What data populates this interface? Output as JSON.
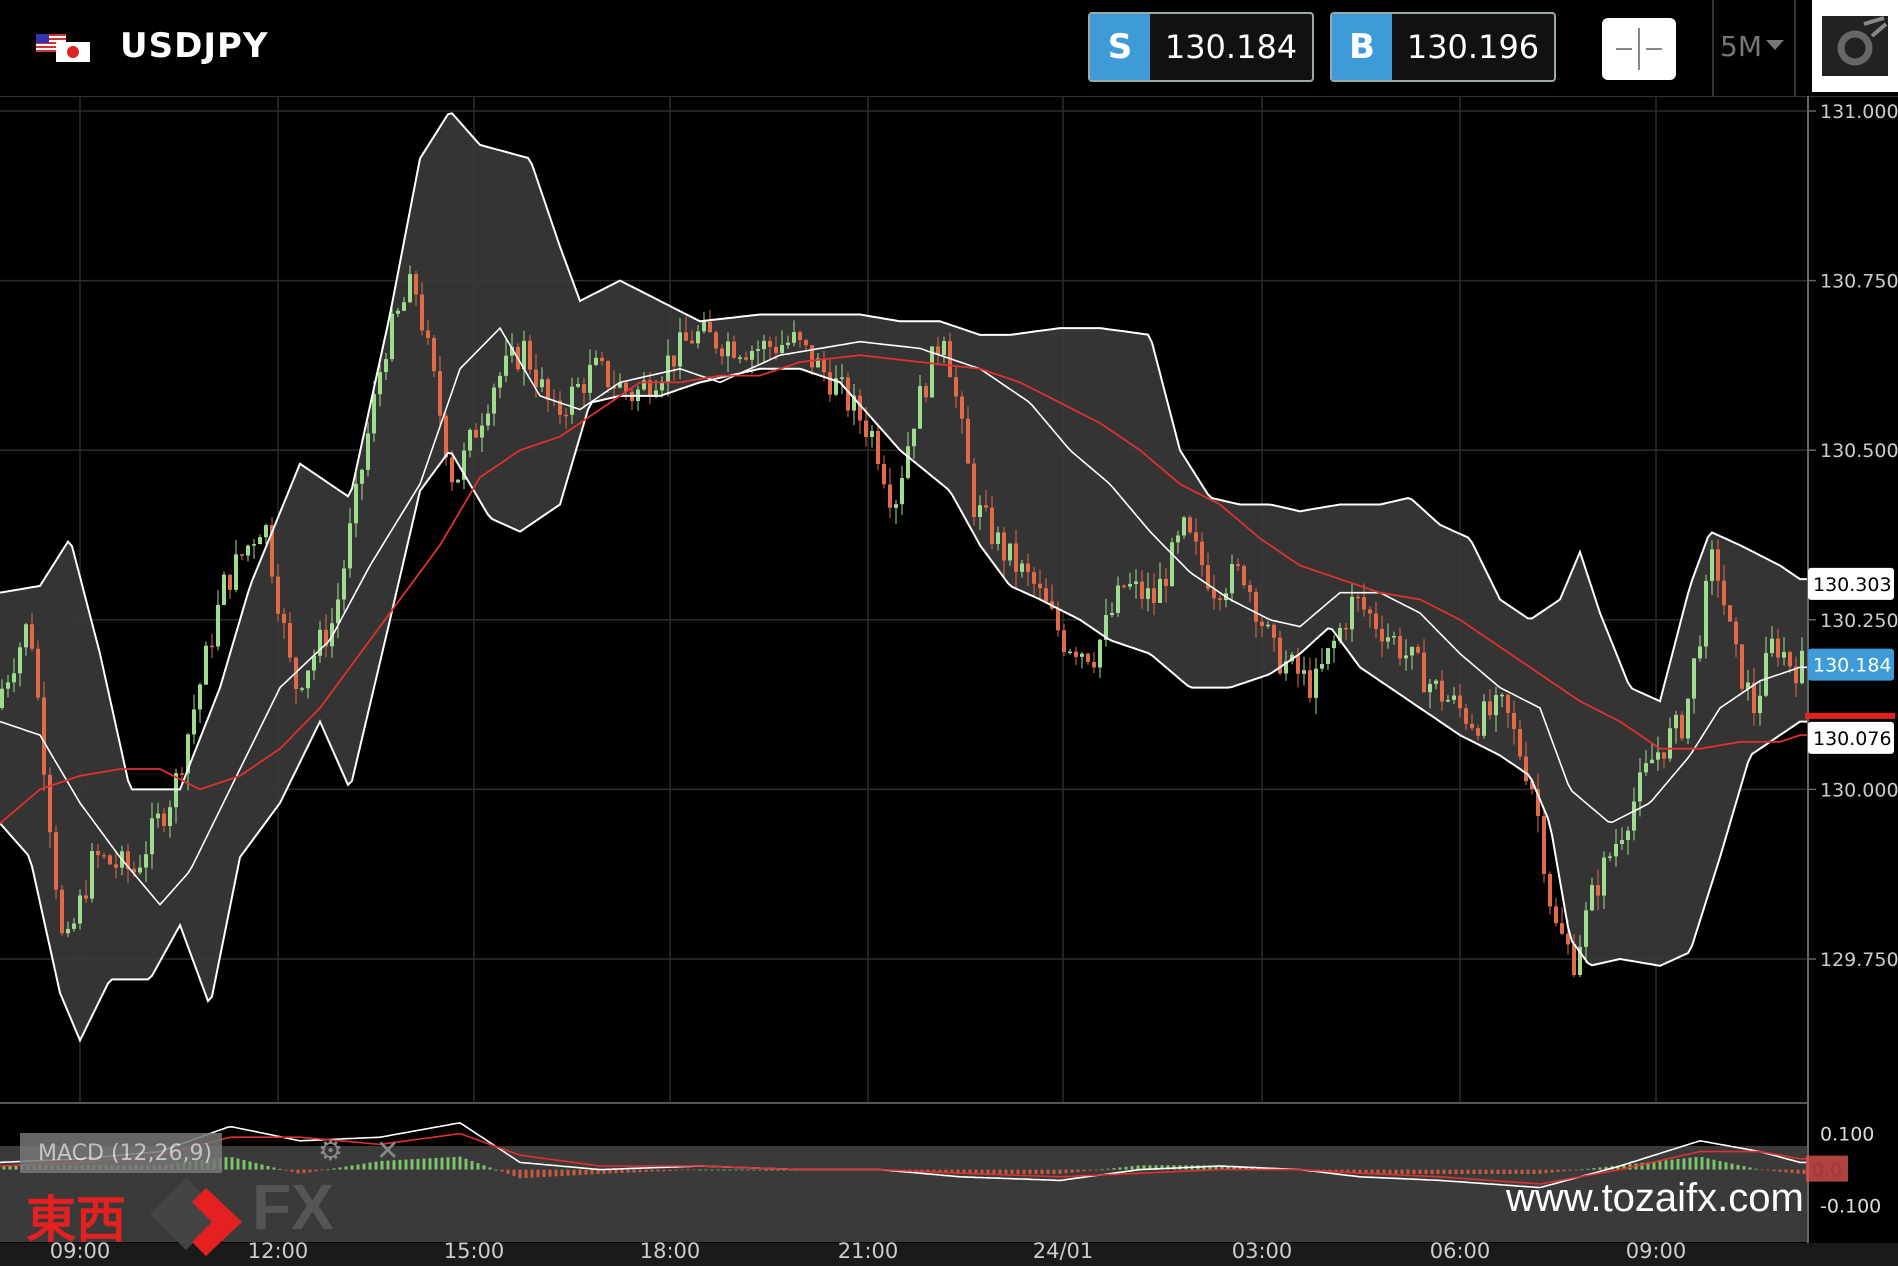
{
  "header": {
    "symbol": "USDJPY",
    "sell_tag": "S",
    "sell_price": "130.184",
    "buy_tag": "B",
    "buy_price": "130.196",
    "timeframe": "5M",
    "crosshair_icon": "crosshair-icon",
    "settings_icon": "gear-icon",
    "flag_icon": "us-japan-flag-icon"
  },
  "y_axis": {
    "ticks": [
      "131.000",
      "130.750",
      "130.500",
      "130.250",
      "130.000",
      "129.750"
    ],
    "tick_values": [
      131.0,
      130.75,
      130.5,
      130.25,
      130.0,
      129.75
    ],
    "markers": [
      {
        "label": "130.303",
        "value": 130.303,
        "style": "white"
      },
      {
        "label": "130.184",
        "value": 130.184,
        "style": "blue"
      },
      {
        "label": "130.076",
        "value": 130.076,
        "style": "white-red"
      }
    ]
  },
  "x_axis": {
    "ticks": [
      "09:00",
      "12:00",
      "15:00",
      "18:00",
      "21:00",
      "24/01",
      "03:00",
      "06:00",
      "09:00"
    ]
  },
  "macd": {
    "label": "MACD (12,26,9)",
    "ticks": [
      "0.100",
      "0.0",
      "-0.100"
    ],
    "tools_icon": "gear-icon",
    "close_icon": "close-icon"
  },
  "brand": {
    "logo_jp": "東西",
    "logo_fx": "FX",
    "website": "www.tozaifx.com"
  },
  "colors": {
    "up_candle": "#9fdc8f",
    "down_candle": "#e06a4a",
    "band_line": "#ffffff",
    "band_fill": "#3a3a3a",
    "ma_line": "#e03030",
    "accent_blue": "#3e9bd8"
  },
  "chart_data": {
    "type": "candlestick",
    "instrument": "USDJPY",
    "timeframe": "5M",
    "ylim": [
      129.6,
      131.03
    ],
    "x": [
      "09:00",
      "12:00",
      "15:00",
      "18:00",
      "21:00",
      "24/01",
      "03:00",
      "06:00",
      "09:00"
    ],
    "price_path": [
      [
        0,
        130.12
      ],
      [
        36,
        130.25
      ],
      [
        70,
        129.75
      ],
      [
        100,
        129.9
      ],
      [
        140,
        129.88
      ],
      [
        180,
        130.0
      ],
      [
        230,
        130.3
      ],
      [
        270,
        130.4
      ],
      [
        300,
        130.15
      ],
      [
        340,
        130.25
      ],
      [
        390,
        130.65
      ],
      [
        420,
        130.75
      ],
      [
        460,
        130.45
      ],
      [
        500,
        130.6
      ],
      [
        530,
        130.65
      ],
      [
        560,
        130.55
      ],
      [
        600,
        130.62
      ],
      [
        640,
        130.58
      ],
      [
        700,
        130.67
      ],
      [
        760,
        130.65
      ],
      [
        800,
        130.66
      ],
      [
        840,
        130.6
      ],
      [
        880,
        130.52
      ],
      [
        900,
        130.42
      ],
      [
        920,
        130.55
      ],
      [
        950,
        130.68
      ],
      [
        980,
        130.42
      ],
      [
        1010,
        130.35
      ],
      [
        1040,
        130.3
      ],
      [
        1070,
        130.22
      ],
      [
        1100,
        130.2
      ],
      [
        1130,
        130.3
      ],
      [
        1160,
        130.28
      ],
      [
        1190,
        130.38
      ],
      [
        1220,
        130.3
      ],
      [
        1250,
        130.32
      ],
      [
        1280,
        130.2
      ],
      [
        1320,
        130.15
      ],
      [
        1360,
        130.28
      ],
      [
        1400,
        130.22
      ],
      [
        1440,
        130.15
      ],
      [
        1480,
        130.1
      ],
      [
        1510,
        130.12
      ],
      [
        1540,
        130.0
      ],
      [
        1560,
        129.8
      ],
      [
        1580,
        129.75
      ],
      [
        1600,
        129.85
      ],
      [
        1630,
        129.95
      ],
      [
        1660,
        130.05
      ],
      [
        1690,
        130.1
      ],
      [
        1720,
        130.35
      ],
      [
        1740,
        130.2
      ],
      [
        1760,
        130.12
      ],
      [
        1780,
        130.22
      ],
      [
        1800,
        130.18
      ],
      [
        1808,
        130.184
      ]
    ],
    "upper_band": [
      [
        0,
        130.29
      ],
      [
        40,
        130.3
      ],
      [
        70,
        130.37
      ],
      [
        100,
        130.2
      ],
      [
        130,
        130.0
      ],
      [
        180,
        130.0
      ],
      [
        220,
        130.15
      ],
      [
        250,
        130.3
      ],
      [
        300,
        130.48
      ],
      [
        350,
        130.43
      ],
      [
        390,
        130.7
      ],
      [
        420,
        130.93
      ],
      [
        450,
        131.0
      ],
      [
        480,
        130.95
      ],
      [
        530,
        130.93
      ],
      [
        560,
        130.8
      ],
      [
        580,
        130.72
      ],
      [
        620,
        130.75
      ],
      [
        660,
        130.72
      ],
      [
        700,
        130.69
      ],
      [
        760,
        130.7
      ],
      [
        800,
        130.7
      ],
      [
        860,
        130.7
      ],
      [
        900,
        130.69
      ],
      [
        940,
        130.69
      ],
      [
        980,
        130.67
      ],
      [
        1010,
        130.67
      ],
      [
        1060,
        130.68
      ],
      [
        1100,
        130.68
      ],
      [
        1150,
        130.67
      ],
      [
        1180,
        130.5
      ],
      [
        1210,
        130.43
      ],
      [
        1240,
        130.42
      ],
      [
        1270,
        130.42
      ],
      [
        1300,
        130.41
      ],
      [
        1340,
        130.42
      ],
      [
        1380,
        130.42
      ],
      [
        1410,
        130.43
      ],
      [
        1440,
        130.39
      ],
      [
        1470,
        130.37
      ],
      [
        1500,
        130.28
      ],
      [
        1530,
        130.25
      ],
      [
        1560,
        130.28
      ],
      [
        1580,
        130.35
      ],
      [
        1600,
        130.26
      ],
      [
        1630,
        130.15
      ],
      [
        1660,
        130.13
      ],
      [
        1690,
        130.3
      ],
      [
        1710,
        130.38
      ],
      [
        1740,
        130.36
      ],
      [
        1780,
        130.33
      ],
      [
        1800,
        130.31
      ]
    ],
    "lower_band": [
      [
        0,
        129.95
      ],
      [
        30,
        129.9
      ],
      [
        60,
        129.7
      ],
      [
        80,
        129.63
      ],
      [
        110,
        129.72
      ],
      [
        150,
        129.72
      ],
      [
        180,
        129.8
      ],
      [
        210,
        129.68
      ],
      [
        240,
        129.9
      ],
      [
        280,
        129.98
      ],
      [
        320,
        130.1
      ],
      [
        350,
        130.0
      ],
      [
        390,
        130.25
      ],
      [
        420,
        130.44
      ],
      [
        450,
        130.5
      ],
      [
        490,
        130.4
      ],
      [
        520,
        130.38
      ],
      [
        560,
        130.42
      ],
      [
        590,
        130.57
      ],
      [
        620,
        130.58
      ],
      [
        660,
        130.58
      ],
      [
        700,
        130.6
      ],
      [
        760,
        130.62
      ],
      [
        800,
        130.62
      ],
      [
        840,
        130.6
      ],
      [
        870,
        130.55
      ],
      [
        900,
        130.5
      ],
      [
        950,
        130.44
      ],
      [
        980,
        130.36
      ],
      [
        1010,
        130.3
      ],
      [
        1040,
        130.28
      ],
      [
        1080,
        130.25
      ],
      [
        1110,
        130.22
      ],
      [
        1150,
        130.2
      ],
      [
        1190,
        130.15
      ],
      [
        1230,
        130.15
      ],
      [
        1270,
        130.17
      ],
      [
        1300,
        130.2
      ],
      [
        1330,
        130.24
      ],
      [
        1360,
        130.18
      ],
      [
        1390,
        130.15
      ],
      [
        1420,
        130.12
      ],
      [
        1460,
        130.08
      ],
      [
        1500,
        130.05
      ],
      [
        1530,
        130.02
      ],
      [
        1550,
        129.95
      ],
      [
        1570,
        129.78
      ],
      [
        1590,
        129.74
      ],
      [
        1620,
        129.75
      ],
      [
        1660,
        129.74
      ],
      [
        1690,
        129.76
      ],
      [
        1720,
        129.9
      ],
      [
        1750,
        130.05
      ],
      [
        1780,
        130.08
      ],
      [
        1800,
        130.1
      ]
    ],
    "middle_band": [
      [
        0,
        130.1
      ],
      [
        40,
        130.08
      ],
      [
        80,
        129.98
      ],
      [
        120,
        129.9
      ],
      [
        160,
        129.83
      ],
      [
        190,
        129.88
      ],
      [
        230,
        130.0
      ],
      [
        280,
        130.15
      ],
      [
        330,
        130.22
      ],
      [
        370,
        130.33
      ],
      [
        420,
        130.45
      ],
      [
        460,
        130.62
      ],
      [
        500,
        130.68
      ],
      [
        540,
        130.58
      ],
      [
        580,
        130.56
      ],
      [
        620,
        130.6
      ],
      [
        680,
        130.62
      ],
      [
        720,
        130.6
      ],
      [
        780,
        130.64
      ],
      [
        860,
        130.66
      ],
      [
        920,
        130.65
      ],
      [
        980,
        130.62
      ],
      [
        1030,
        130.57
      ],
      [
        1070,
        130.5
      ],
      [
        1110,
        130.45
      ],
      [
        1150,
        130.38
      ],
      [
        1190,
        130.32
      ],
      [
        1230,
        130.28
      ],
      [
        1270,
        130.25
      ],
      [
        1300,
        130.24
      ],
      [
        1340,
        130.29
      ],
      [
        1380,
        130.29
      ],
      [
        1420,
        130.26
      ],
      [
        1460,
        130.2
      ],
      [
        1500,
        130.15
      ],
      [
        1540,
        130.12
      ],
      [
        1570,
        130.0
      ],
      [
        1610,
        129.95
      ],
      [
        1650,
        129.98
      ],
      [
        1690,
        130.05
      ],
      [
        1720,
        130.12
      ],
      [
        1760,
        130.16
      ],
      [
        1800,
        130.18
      ]
    ],
    "moving_average": [
      [
        0,
        129.95
      ],
      [
        40,
        130.0
      ],
      [
        80,
        130.02
      ],
      [
        120,
        130.03
      ],
      [
        160,
        130.03
      ],
      [
        200,
        130.0
      ],
      [
        240,
        130.02
      ],
      [
        280,
        130.06
      ],
      [
        320,
        130.12
      ],
      [
        360,
        130.2
      ],
      [
        400,
        130.28
      ],
      [
        440,
        130.36
      ],
      [
        480,
        130.46
      ],
      [
        520,
        130.5
      ],
      [
        560,
        130.52
      ],
      [
        600,
        130.56
      ],
      [
        640,
        130.6
      ],
      [
        680,
        130.6
      ],
      [
        720,
        130.61
      ],
      [
        760,
        130.61
      ],
      [
        800,
        130.63
      ],
      [
        860,
        130.64
      ],
      [
        920,
        130.63
      ],
      [
        980,
        130.62
      ],
      [
        1020,
        130.6
      ],
      [
        1060,
        130.57
      ],
      [
        1100,
        130.54
      ],
      [
        1140,
        130.5
      ],
      [
        1180,
        130.45
      ],
      [
        1220,
        130.42
      ],
      [
        1260,
        130.37
      ],
      [
        1300,
        130.33
      ],
      [
        1340,
        130.31
      ],
      [
        1380,
        130.29
      ],
      [
        1420,
        130.28
      ],
      [
        1460,
        130.25
      ],
      [
        1500,
        130.21
      ],
      [
        1540,
        130.17
      ],
      [
        1580,
        130.13
      ],
      [
        1620,
        130.1
      ],
      [
        1660,
        130.06
      ],
      [
        1700,
        130.06
      ],
      [
        1740,
        130.07
      ],
      [
        1780,
        130.07
      ],
      [
        1800,
        130.08
      ]
    ],
    "macd_line": [
      [
        0,
        0.02
      ],
      [
        80,
        0.03
      ],
      [
        160,
        0.05
      ],
      [
        230,
        0.12
      ],
      [
        300,
        0.08
      ],
      [
        380,
        0.09
      ],
      [
        460,
        0.13
      ],
      [
        520,
        0.02
      ],
      [
        600,
        0.0
      ],
      [
        700,
        0.01
      ],
      [
        800,
        0.0
      ],
      [
        880,
        0.0
      ],
      [
        960,
        -0.02
      ],
      [
        1060,
        -0.03
      ],
      [
        1140,
        0.0
      ],
      [
        1220,
        0.01
      ],
      [
        1300,
        0.0
      ],
      [
        1360,
        -0.02
      ],
      [
        1440,
        -0.03
      ],
      [
        1540,
        -0.05
      ],
      [
        1620,
        0.01
      ],
      [
        1700,
        0.08
      ],
      [
        1760,
        0.05
      ],
      [
        1800,
        0.02
      ]
    ],
    "signal_line": [
      [
        0,
        0.01
      ],
      [
        80,
        0.02
      ],
      [
        160,
        0.04
      ],
      [
        230,
        0.09
      ],
      [
        300,
        0.09
      ],
      [
        380,
        0.07
      ],
      [
        460,
        0.1
      ],
      [
        520,
        0.04
      ],
      [
        600,
        0.01
      ],
      [
        700,
        0.01
      ],
      [
        800,
        0.0
      ],
      [
        880,
        0.0
      ],
      [
        960,
        -0.01
      ],
      [
        1060,
        -0.02
      ],
      [
        1140,
        -0.01
      ],
      [
        1220,
        0.0
      ],
      [
        1300,
        0.0
      ],
      [
        1360,
        -0.01
      ],
      [
        1440,
        -0.02
      ],
      [
        1540,
        -0.04
      ],
      [
        1620,
        0.0
      ],
      [
        1700,
        0.05
      ],
      [
        1760,
        0.05
      ],
      [
        1800,
        0.03
      ]
    ],
    "macd_ylim": [
      -0.14,
      0.16
    ]
  }
}
